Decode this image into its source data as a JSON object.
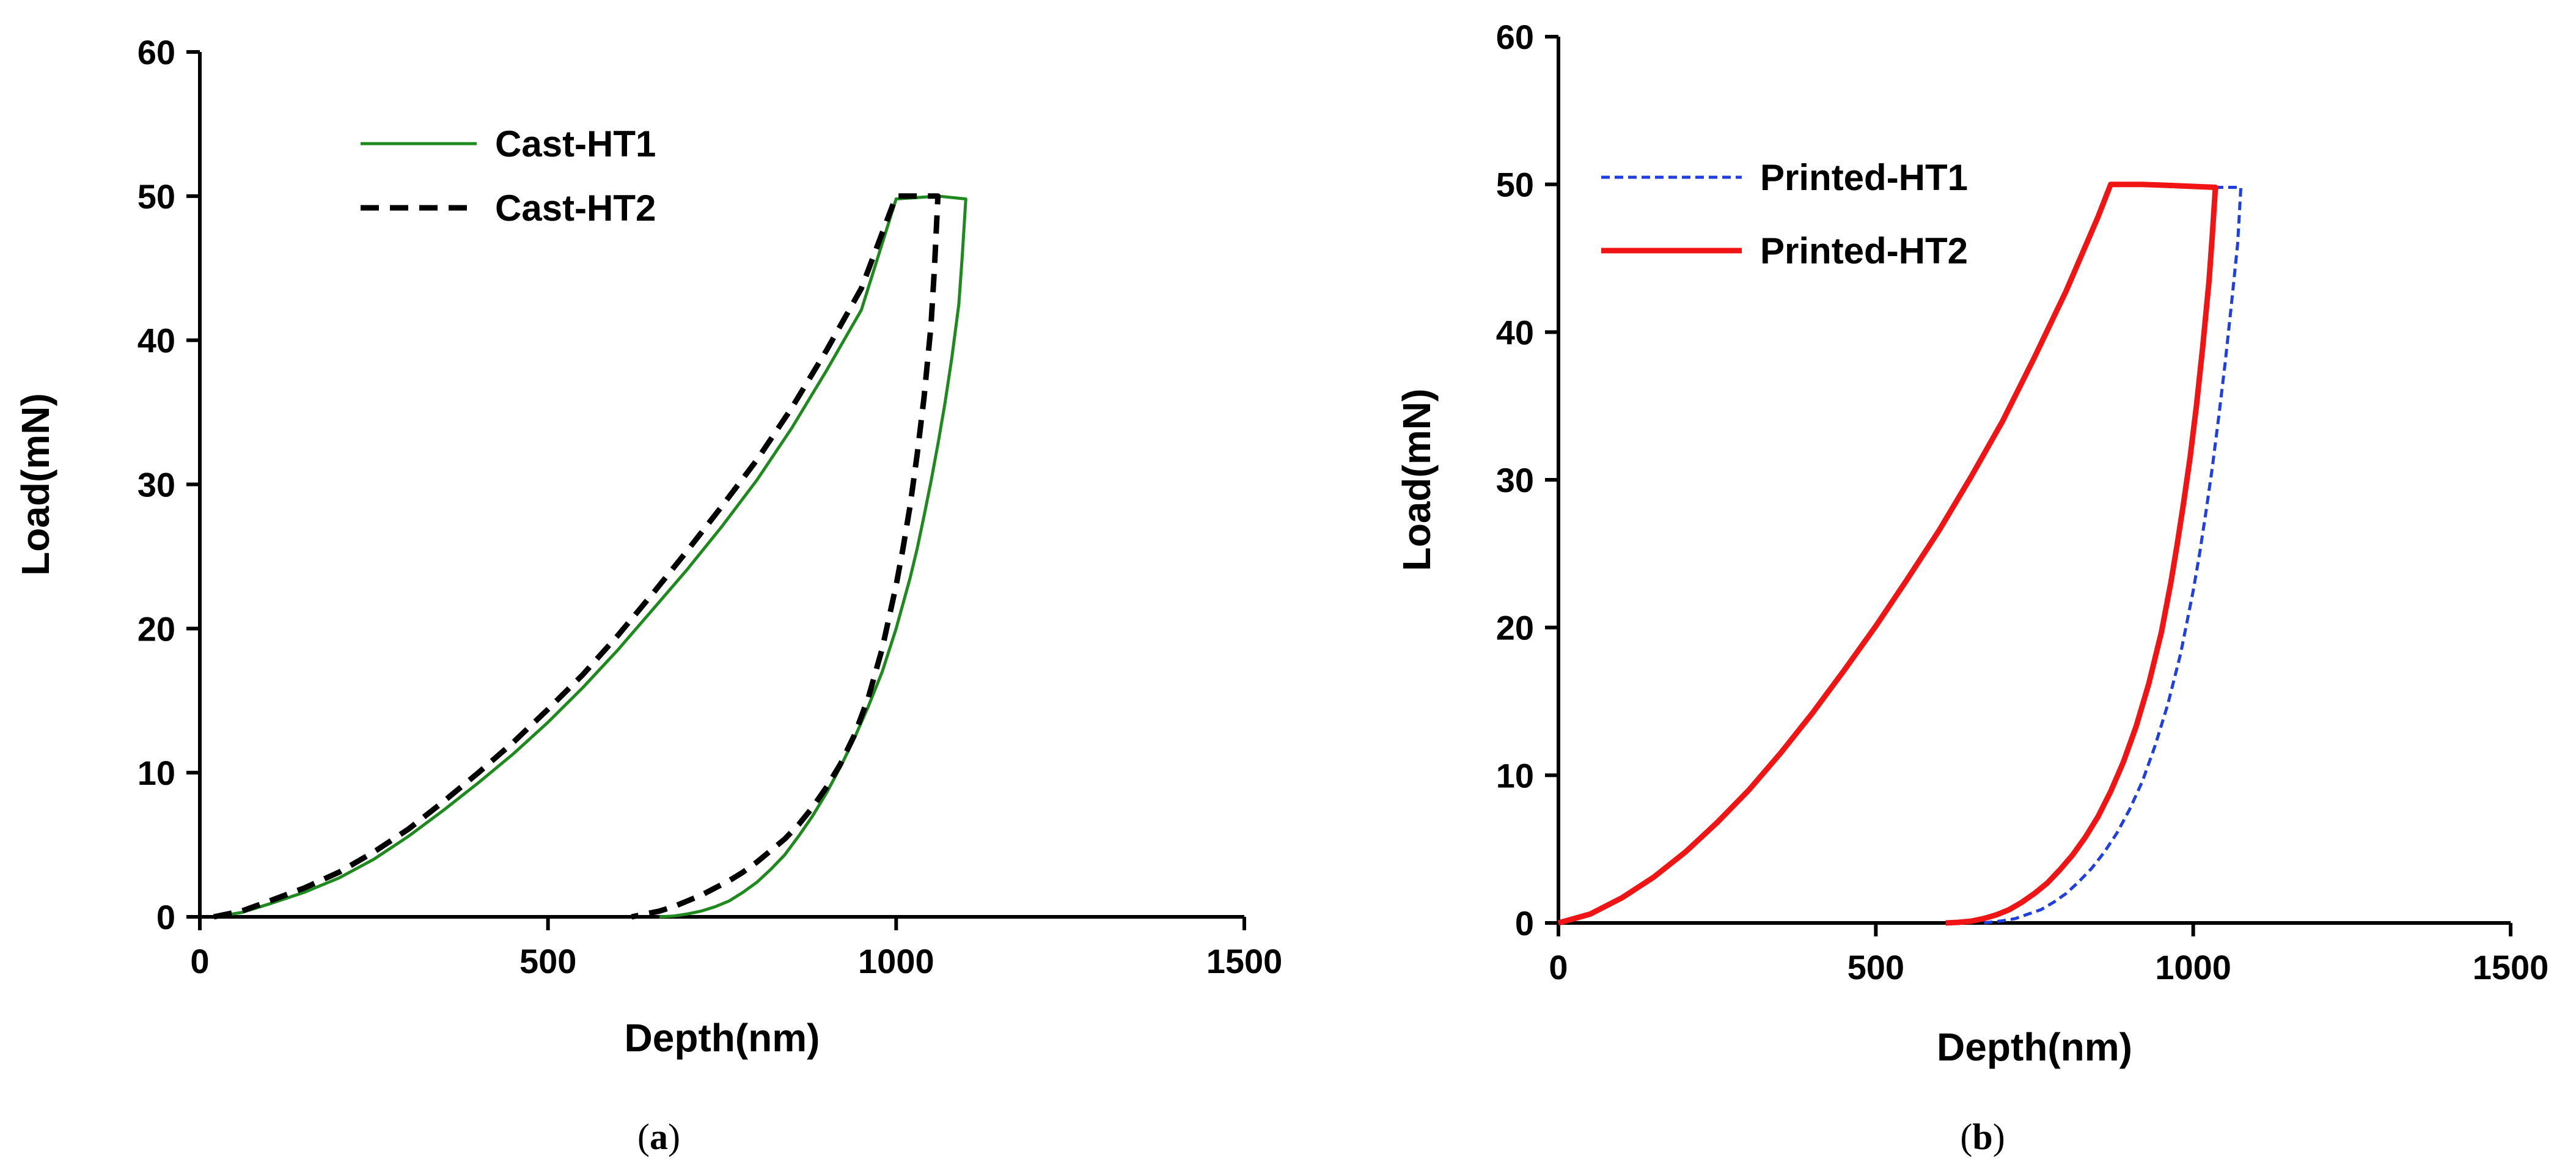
{
  "chart_data": [
    {
      "type": "line",
      "panel_label": "a",
      "title": "",
      "xlabel": "Depth(nm)",
      "ylabel": "Load(mN)",
      "xlim": [
        0,
        1500
      ],
      "ylim": [
        0,
        60
      ],
      "xticks": [
        0,
        500,
        1000,
        1500
      ],
      "yticks": [
        0,
        10,
        20,
        30,
        40,
        50,
        60
      ],
      "grid": false,
      "legend_position": "top-left",
      "series": [
        {
          "name": "Cast-HT1",
          "color": "#1e8a1e",
          "dash": "solid",
          "weight": "thin",
          "x": [
            20,
            60,
            100,
            150,
            200,
            250,
            300,
            350,
            400,
            450,
            500,
            550,
            600,
            650,
            700,
            750,
            800,
            850,
            900,
            950,
            1000,
            1030,
            1060,
            1100,
            1095,
            1090,
            1080,
            1070,
            1060,
            1050,
            1040,
            1030,
            1020,
            1000,
            980,
            960,
            940,
            920,
            900,
            880,
            860,
            840,
            820,
            800,
            780,
            760,
            740,
            720,
            700,
            680,
            660
          ],
          "y": [
            0,
            0.3,
            0.9,
            1.7,
            2.7,
            4.0,
            5.6,
            7.4,
            9.3,
            11.3,
            13.5,
            15.9,
            18.5,
            21.3,
            24.1,
            27.1,
            30.3,
            33.9,
            37.9,
            42.1,
            49.8,
            49.9,
            50.0,
            49.8,
            45.9,
            42.5,
            38.8,
            35.6,
            32.8,
            30.2,
            27.8,
            25.5,
            23.5,
            20.0,
            17.0,
            14.6,
            12.4,
            10.4,
            8.6,
            7.0,
            5.6,
            4.3,
            3.3,
            2.4,
            1.7,
            1.1,
            0.7,
            0.4,
            0.2,
            0.05,
            0
          ]
        },
        {
          "name": "Cast-HT2",
          "color": "#000000",
          "dash": "dashed",
          "weight": "thick",
          "x": [
            20,
            60,
            100,
            150,
            200,
            250,
            300,
            350,
            400,
            450,
            500,
            550,
            600,
            650,
            700,
            750,
            800,
            850,
            900,
            950,
            1000,
            1030,
            1060,
            1055,
            1050,
            1040,
            1030,
            1020,
            1010,
            1000,
            990,
            980,
            960,
            940,
            920,
            900,
            880,
            860,
            840,
            820,
            800,
            780,
            760,
            740,
            720,
            700,
            680,
            660,
            640,
            620
          ],
          "y": [
            0,
            0.4,
            1.1,
            2.0,
            3.1,
            4.5,
            6.1,
            8.0,
            10.0,
            12.1,
            14.4,
            16.8,
            19.5,
            22.4,
            25.4,
            28.5,
            31.7,
            35.3,
            39.3,
            43.6,
            50.0,
            50.0,
            50.0,
            45.0,
            41.0,
            36.0,
            32.0,
            28.5,
            25.6,
            23.0,
            20.8,
            18.6,
            15.2,
            12.6,
            10.6,
            9.0,
            7.6,
            6.4,
            5.4,
            4.6,
            3.8,
            3.1,
            2.5,
            2.0,
            1.5,
            1.1,
            0.7,
            0.4,
            0.2,
            0
          ]
        }
      ]
    },
    {
      "type": "line",
      "panel_label": "b",
      "title": "",
      "xlabel": "Depth(nm)",
      "ylabel": "Load(mN)",
      "xlim": [
        0,
        1500
      ],
      "ylim": [
        0,
        60
      ],
      "xticks": [
        0,
        500,
        1000,
        1500
      ],
      "yticks": [
        0,
        10,
        20,
        30,
        40,
        50,
        60
      ],
      "grid": false,
      "legend_position": "top-left",
      "series": [
        {
          "name": "Printed-HT1",
          "color": "#1f3fe0",
          "dash": "dotted",
          "weight": "thin",
          "x": [
            0,
            50,
            100,
            150,
            200,
            250,
            300,
            350,
            400,
            450,
            500,
            550,
            600,
            650,
            700,
            750,
            800,
            850,
            870,
            920,
            980,
            1040,
            1075,
            1070,
            1060,
            1050,
            1040,
            1030,
            1020,
            1010,
            1000,
            980,
            960,
            940,
            920,
            900,
            880,
            860,
            840,
            820,
            800,
            780,
            760,
            740,
            720,
            700,
            680,
            670
          ],
          "y": [
            0,
            0.6,
            1.7,
            3.1,
            4.8,
            6.8,
            9.0,
            11.5,
            14.2,
            17.1,
            20.1,
            23.3,
            26.6,
            30.2,
            34.0,
            38.3,
            42.8,
            47.8,
            50.0,
            50.0,
            49.9,
            49.8,
            49.8,
            46.0,
            41.8,
            37.8,
            34.2,
            30.8,
            27.8,
            25.0,
            22.5,
            18.2,
            14.8,
            12.0,
            9.6,
            7.7,
            6.1,
            4.8,
            3.7,
            2.8,
            2.0,
            1.4,
            0.9,
            0.6,
            0.3,
            0.15,
            0.05,
            0
          ]
        },
        {
          "name": "Printed-HT2",
          "color": "#f01414",
          "dash": "solid",
          "weight": "thick",
          "x": [
            0,
            50,
            100,
            150,
            200,
            250,
            300,
            350,
            400,
            450,
            500,
            550,
            600,
            650,
            700,
            750,
            800,
            850,
            870,
            920,
            980,
            1035,
            1030,
            1025,
            1015,
            1005,
            995,
            985,
            975,
            965,
            950,
            930,
            910,
            890,
            870,
            850,
            830,
            810,
            790,
            770,
            750,
            730,
            710,
            690,
            670,
            650,
            630,
            610
          ],
          "y": [
            0,
            0.6,
            1.7,
            3.1,
            4.8,
            6.8,
            9.0,
            11.5,
            14.2,
            17.1,
            20.1,
            23.3,
            26.6,
            30.2,
            34.0,
            38.3,
            42.8,
            47.8,
            50.0,
            50.0,
            49.9,
            49.8,
            46.5,
            43.5,
            39.0,
            35.0,
            31.5,
            28.5,
            25.7,
            23.1,
            19.7,
            16.2,
            13.3,
            10.9,
            8.9,
            7.2,
            5.8,
            4.6,
            3.6,
            2.7,
            2.0,
            1.4,
            0.9,
            0.55,
            0.3,
            0.12,
            0.04,
            0
          ]
        }
      ]
    }
  ]
}
